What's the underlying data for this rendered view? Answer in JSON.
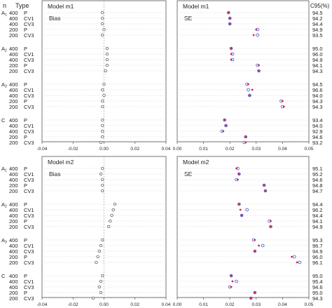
{
  "header": {
    "n_label": "n",
    "type_label": "Type",
    "cov_label": "C95(%)"
  },
  "row_labels": [
    {
      "group": "A1",
      "n": "400",
      "type": "P"
    },
    {
      "group": "",
      "n": "400",
      "type": "CV1"
    },
    {
      "group": "",
      "n": "400",
      "type": "CV3"
    },
    {
      "group": "",
      "n": "200",
      "type": "P"
    },
    {
      "group": "",
      "n": "200",
      "type": "CV3"
    },
    {
      "group": "A2",
      "n": "400",
      "type": "P"
    },
    {
      "group": "",
      "n": "400",
      "type": "CV1"
    },
    {
      "group": "",
      "n": "400",
      "type": "CV3"
    },
    {
      "group": "",
      "n": "200",
      "type": "P"
    },
    {
      "group": "",
      "n": "200",
      "type": "CV3"
    },
    {
      "group": "A3",
      "n": "400",
      "type": "P"
    },
    {
      "group": "",
      "n": "400",
      "type": "CV1"
    },
    {
      "group": "",
      "n": "400",
      "type": "CV3"
    },
    {
      "group": "",
      "n": "200",
      "type": "P"
    },
    {
      "group": "",
      "n": "200",
      "type": "CV3"
    },
    {
      "group": "C",
      "n": "400",
      "type": "P"
    },
    {
      "group": "",
      "n": "400",
      "type": "CV1"
    },
    {
      "group": "",
      "n": "400",
      "type": "CV3"
    },
    {
      "group": "",
      "n": "200",
      "type": "P"
    },
    {
      "group": "",
      "n": "200",
      "type": "CV3"
    }
  ],
  "chart_data": [
    {
      "type": "scatter",
      "model": "Model m1",
      "bias_label": "Bias",
      "se_label": "SE",
      "bias_ticks": [
        "-0.04",
        "-0.02",
        "0.00",
        "0.02",
        "0.04"
      ],
      "bias_xlim": [
        -0.04,
        0.04
      ],
      "se_ticks": [
        "0.00",
        "0.01",
        "0.02",
        "0.03",
        "0.04",
        "0.05"
      ],
      "se_xlim": [
        0.0,
        0.05
      ],
      "bias": [
        -0.001,
        -0.001,
        -0.001,
        0.0,
        -0.001,
        0.002,
        0.002,
        0.002,
        0.002,
        0.001,
        0.0,
        -0.001,
        0.0,
        -0.001,
        -0.001,
        -0.001,
        -0.001,
        -0.001,
        -0.001,
        -0.002
      ],
      "se_model": [
        0.0195,
        0.02,
        0.02,
        0.03,
        0.029,
        0.0205,
        0.0205,
        0.0205,
        0.031,
        0.031,
        0.027,
        0.0285,
        0.0275,
        0.04,
        0.0405,
        0.018,
        0.0185,
        0.0175,
        0.026,
        0.026
      ],
      "se_empirical": [
        0.0195,
        0.02,
        0.02,
        0.0305,
        0.0305,
        0.0205,
        0.021,
        0.021,
        0.0305,
        0.031,
        0.0265,
        0.027,
        0.0275,
        0.0395,
        0.04,
        0.018,
        0.0185,
        0.017,
        0.026,
        0.0255
      ],
      "coverage": [
        "94.5",
        "94.2",
        "94.4",
        "94.9",
        "93.5",
        "95.0",
        "96.0",
        "94.9",
        "94.1",
        "94.3",
        "94.5",
        "96.6",
        "94.0",
        "94.3",
        "94.3",
        "93.4",
        "94.0",
        "92.9",
        "94.6",
        "93.2"
      ]
    },
    {
      "type": "scatter",
      "model": "Model m2",
      "bias_label": "Bias",
      "se_label": "SE",
      "bias_ticks": [
        "-0.04",
        "-0.02",
        "0.00",
        "0.02",
        "0.04"
      ],
      "bias_xlim": [
        -0.04,
        0.04
      ],
      "se_ticks": [
        "0.00",
        "0.01",
        "0.02",
        "0.03",
        "0.04",
        "0.05"
      ],
      "se_xlim": [
        0.0,
        0.05
      ],
      "bias": [
        -0.001,
        -0.002,
        -0.001,
        -0.001,
        -0.001,
        0.007,
        0.006,
        0.005,
        0.004,
        0.003,
        -0.001,
        -0.002,
        -0.003,
        -0.004,
        -0.005,
        -0.001,
        -0.002,
        -0.003,
        -0.002,
        -0.007
      ],
      "se_model": [
        0.0225,
        0.0235,
        0.023,
        0.033,
        0.0335,
        0.0235,
        0.024,
        0.0245,
        0.0355,
        0.0355,
        0.0295,
        0.031,
        0.0295,
        0.0435,
        0.0455,
        0.0205,
        0.021,
        0.0205,
        0.0295,
        0.028
      ],
      "se_empirical": [
        0.023,
        0.0235,
        0.0225,
        0.033,
        0.0335,
        0.0235,
        0.0265,
        0.0245,
        0.035,
        0.0355,
        0.029,
        0.0325,
        0.0295,
        0.0445,
        0.0465,
        0.0205,
        0.0225,
        0.02,
        0.0295,
        0.028
      ],
      "coverage": [
        "95.1",
        "95.2",
        "94.6",
        "94.8",
        "94.7",
        "94.4",
        "96.2",
        "94.4",
        "94.1",
        "94.9",
        "95.3",
        "96.7",
        "94.9",
        "96.0",
        "96.1",
        "95.0",
        "95.4",
        "94.6",
        "95.0",
        "94.3"
      ]
    }
  ],
  "colors": {
    "bias_marker": "#444444",
    "model_se": "#d6254b",
    "empirical_se": "#3f51c8",
    "frame": "#555555",
    "guide": "#cfcfcf"
  }
}
